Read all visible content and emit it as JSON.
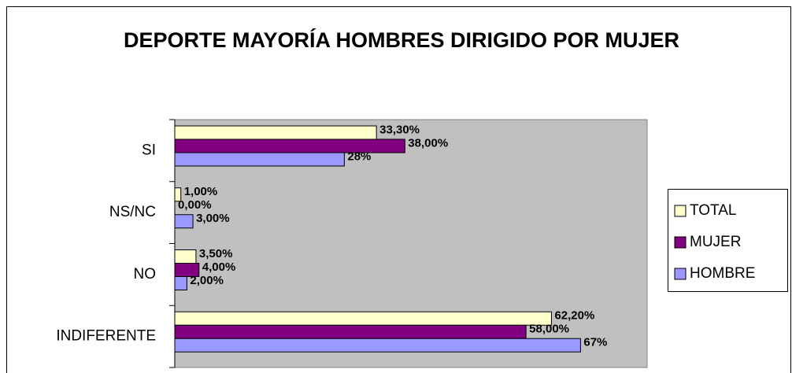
{
  "chart_data": {
    "type": "hbar",
    "title": "DEPORTE MAYORÍA HOMBRES DIRIGIDO POR MUJER",
    "categories": [
      "SI",
      "NS/NC",
      "NO",
      "INDIFERENTE"
    ],
    "series": [
      {
        "name": "TOTAL",
        "color": "#ffffcc",
        "values": [
          33.3,
          1,
          3.5,
          62.2
        ],
        "value_labels": [
          "33,30%",
          "1,00%",
          "3,50%",
          "62,20%"
        ]
      },
      {
        "name": "MUJER",
        "color": "#800080",
        "values": [
          38,
          0,
          4,
          58
        ],
        "value_labels": [
          "38,00%",
          "0,00%",
          "4,00%",
          "58,00%"
        ]
      },
      {
        "name": "HOMBRE",
        "color": "#9999ff",
        "values": [
          28,
          3,
          2,
          67
        ],
        "value_labels": [
          "28%",
          "3,00%",
          "2,00%",
          "67%"
        ]
      }
    ],
    "xlim": [
      0,
      78
    ],
    "legend": "right"
  }
}
